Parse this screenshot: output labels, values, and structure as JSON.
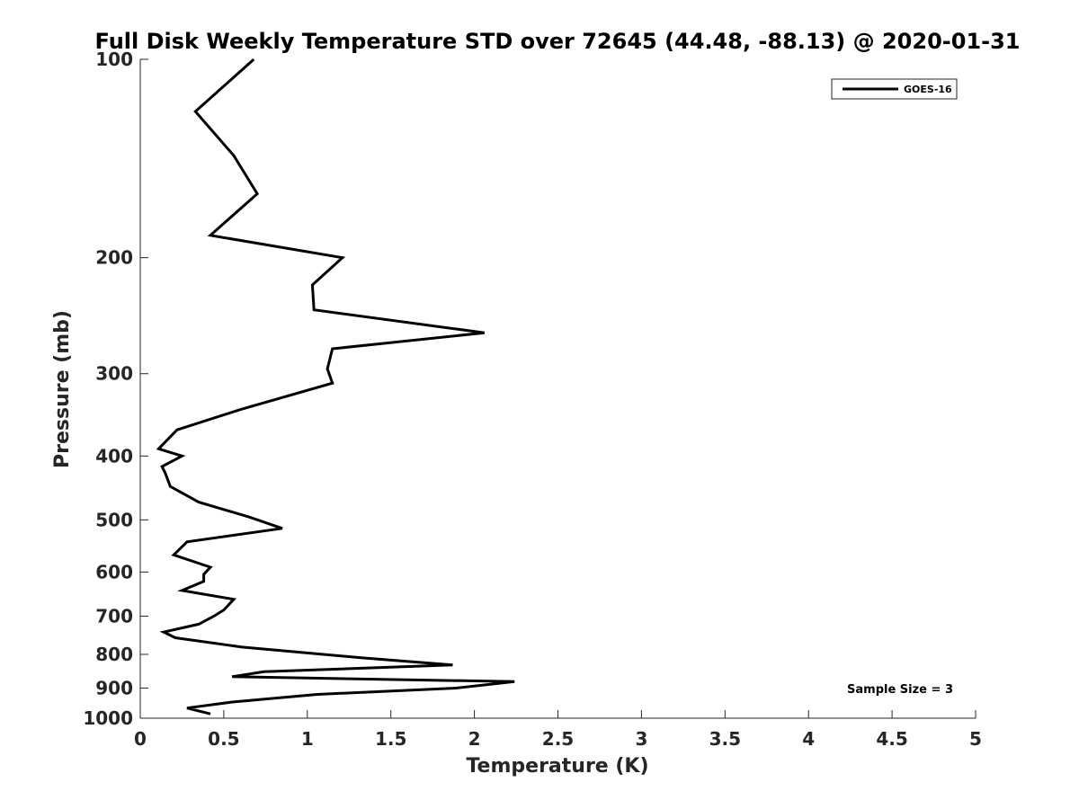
{
  "chart_data": {
    "type": "line",
    "title": "Full Disk Weekly Temperature STD over 72645 (44.48, -88.13) @ 2020-01-31",
    "xlabel": "Temperature (K)",
    "ylabel": "Pressure (mb)",
    "xlim": [
      0,
      5
    ],
    "ylim": [
      100,
      1000
    ],
    "yscale": "log",
    "y_reversed": true,
    "x_ticks": [
      "0",
      "0.5",
      "1",
      "1.5",
      "2",
      "2.5",
      "3",
      "3.5",
      "4",
      "4.5",
      "5"
    ],
    "y_ticks": [
      "100",
      "200",
      "300",
      "400",
      "500",
      "600",
      "700",
      "800",
      "900",
      "1000"
    ],
    "grid": false,
    "legend_position": "top-right",
    "annotation": "Sample Size = 3",
    "series": [
      {
        "name": "GOES-16",
        "color": "#000000",
        "x": [
          0.68,
          0.33,
          0.56,
          0.7,
          0.42,
          1.21,
          1.03,
          1.04,
          2.06,
          1.15,
          1.12,
          1.15,
          0.6,
          0.22,
          0.11,
          0.25,
          0.13,
          0.15,
          0.18,
          0.35,
          0.65,
          0.85,
          0.28,
          0.2,
          0.42,
          0.38,
          0.38,
          0.25,
          0.56,
          0.5,
          0.44,
          0.35,
          0.14,
          0.21,
          0.61,
          1.33,
          1.87,
          0.74,
          0.55,
          2.24,
          1.89,
          1.06,
          0.55,
          0.28,
          0.42
        ],
        "y": [
          100,
          120,
          140,
          160,
          185,
          200,
          220,
          240,
          260,
          275,
          295,
          310,
          340,
          365,
          390,
          400,
          415,
          425,
          445,
          470,
          495,
          515,
          540,
          565,
          590,
          605,
          620,
          640,
          660,
          685,
          700,
          720,
          740,
          755,
          780,
          810,
          830,
          850,
          865,
          880,
          900,
          920,
          945,
          965,
          985
        ]
      }
    ]
  }
}
